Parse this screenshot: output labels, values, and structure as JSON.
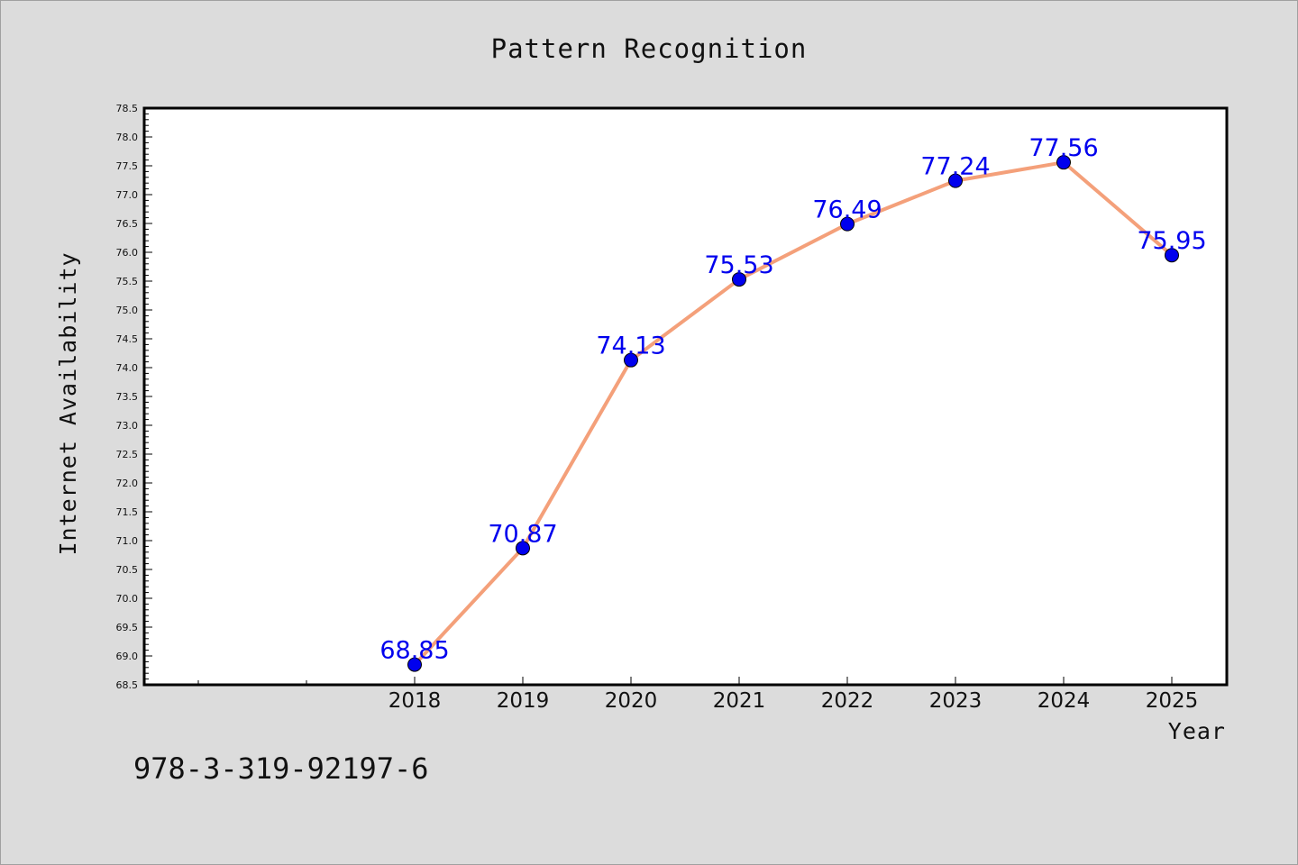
{
  "chart_data": {
    "type": "line",
    "title": "Pattern Recognition",
    "xlabel": "Year",
    "ylabel": "Internet Availability",
    "categories": [
      "2018",
      "2019",
      "2020",
      "2021",
      "2022",
      "2023",
      "2024",
      "2025"
    ],
    "series": [
      {
        "values": [
          68.85,
          70.87,
          74.13,
          75.53,
          76.49,
          77.24,
          77.56,
          75.95
        ],
        "labels": [
          "68.85",
          "70.87",
          "74.13",
          "75.53",
          "76.49",
          "77.24",
          "77.56",
          "75.95"
        ],
        "line_color": "#f4a07a",
        "marker_color": "#0000ee"
      }
    ],
    "ylim": [
      68.5,
      78.5
    ],
    "yticks": [
      "68.5",
      "69.0",
      "69.5",
      "70.0",
      "70.5",
      "71.0",
      "71.5",
      "72.0",
      "72.5",
      "73.0",
      "73.5",
      "74.0",
      "74.5",
      "75.0",
      "75.5",
      "76.0",
      "76.5",
      "77.0",
      "77.5",
      "78.0",
      "78.5"
    ],
    "grid": false,
    "legend": "none"
  },
  "footer": {
    "isbn": "978-3-319-92197-6"
  }
}
